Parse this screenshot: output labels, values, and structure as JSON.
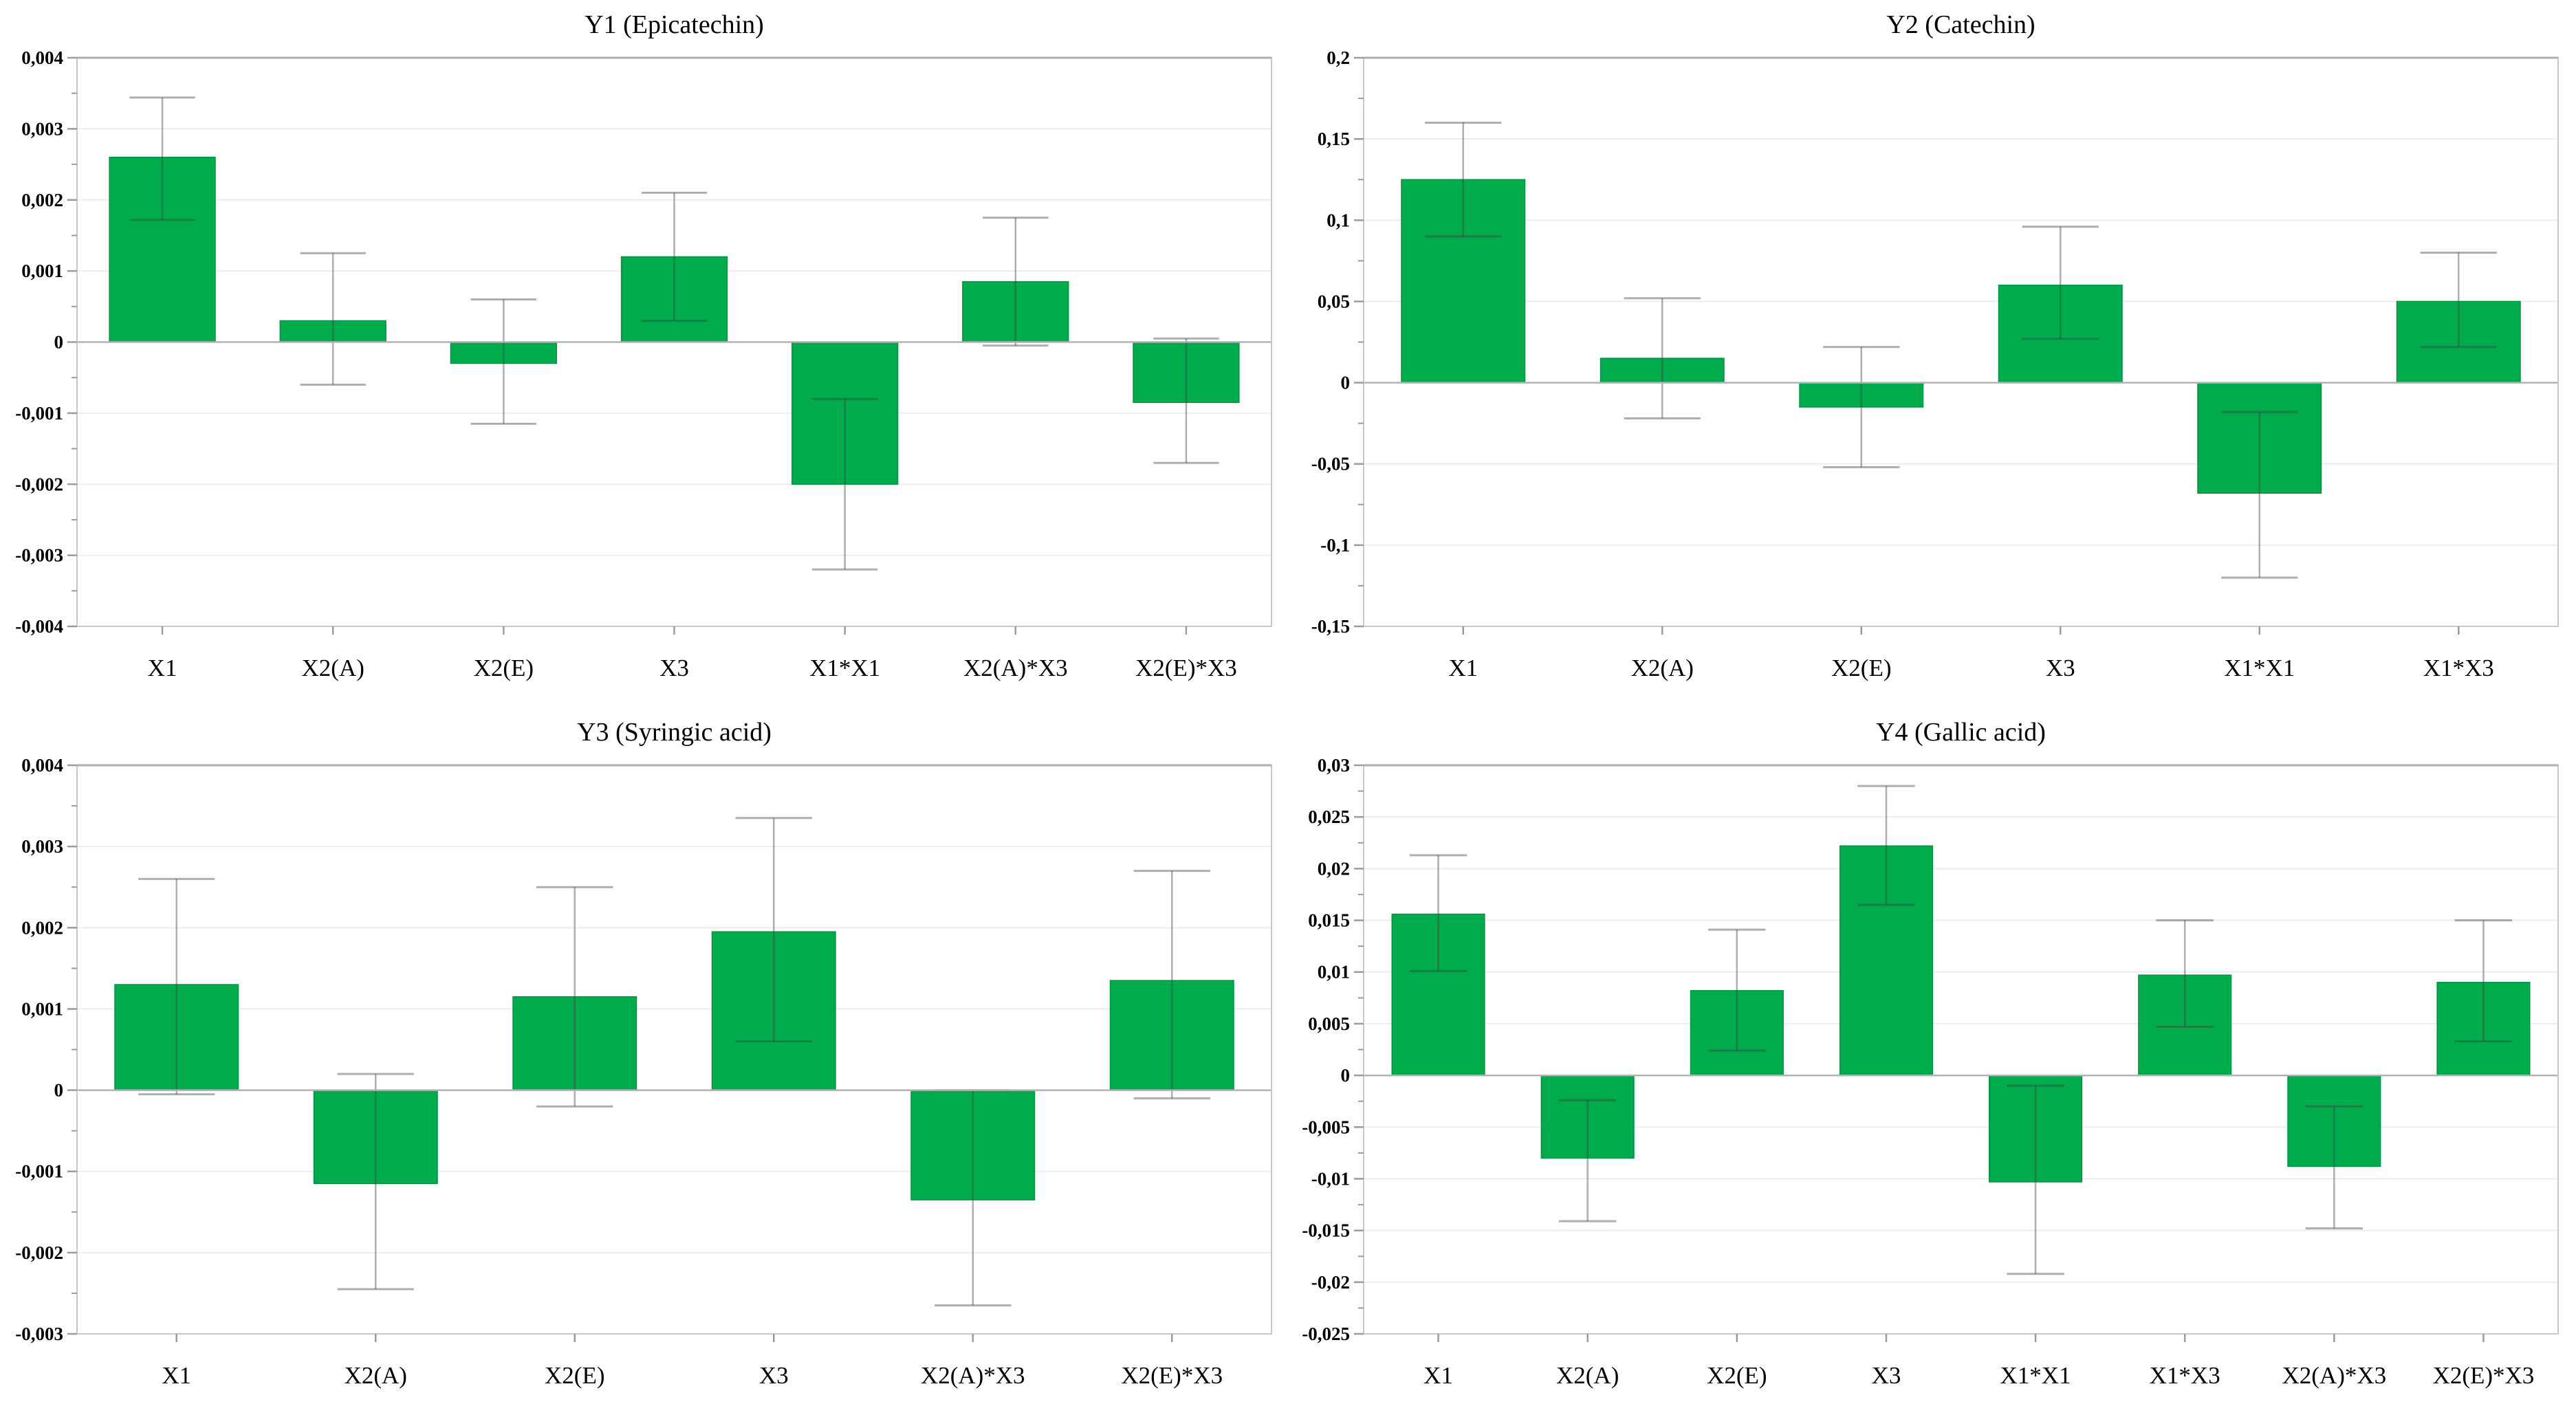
{
  "page": {
    "kind": "figure",
    "description_colors": {
      "bar": "#00ab4b",
      "bar_border": "#019345",
      "error": "rgba(64,64,64,0.42)",
      "grid": "#ededed",
      "zero_line": "#b2b2b2",
      "plot_border": "#c9c9c9",
      "tick": "#9b9b9b",
      "text": "#000000"
    }
  },
  "chart_data": [
    {
      "type": "bar",
      "title": "Y1 (Epicatechin)",
      "xlabel": "",
      "ylabel": "",
      "ylim": [
        -0.004,
        0.004
      ],
      "ytick_step": 0.001,
      "ytick_labels": [
        "0,004",
        "0,003",
        "0,002",
        "0,001",
        "0",
        "-0,001",
        "-0,002",
        "-0,003",
        "-0,004"
      ],
      "grid": "horizontal",
      "legend": "none",
      "categories": [
        "X1",
        "X2(A)",
        "X2(E)",
        "X3",
        "X1*X1",
        "X2(A)*X3",
        "X2(E)*X3"
      ],
      "values": [
        0.0026,
        0.0003,
        -0.0003,
        0.0012,
        -0.002,
        0.00085,
        -0.00085
      ],
      "error_low": [
        0.00172,
        -0.0006,
        -0.00115,
        0.0003,
        -0.0032,
        -5e-05,
        -0.0017
      ],
      "error_high": [
        0.00344,
        0.00125,
        0.0006,
        0.0021,
        -0.0008,
        0.00175,
        5e-05
      ]
    },
    {
      "type": "bar",
      "title": "Y2 (Catechin)",
      "xlabel": "",
      "ylabel": "",
      "ylim": [
        -0.15,
        0.2
      ],
      "ytick_step": 0.05,
      "ytick_labels": [
        "0,2",
        "0,15",
        "0,1",
        "0,05",
        "0",
        "-0,05",
        "-0,1",
        "-0,15"
      ],
      "grid": "horizontal",
      "legend": "none",
      "categories": [
        "X1",
        "X2(A)",
        "X2(E)",
        "X3",
        "X1*X1",
        "X1*X3"
      ],
      "values": [
        0.125,
        0.015,
        -0.015,
        0.06,
        -0.068,
        0.05
      ],
      "error_low": [
        0.09,
        -0.022,
        -0.052,
        0.027,
        -0.12,
        0.022
      ],
      "error_high": [
        0.16,
        0.052,
        0.022,
        0.096,
        -0.018,
        0.08
      ]
    },
    {
      "type": "bar",
      "title": "Y3 (Syringic acid)",
      "xlabel": "",
      "ylabel": "",
      "ylim": [
        -0.003,
        0.004
      ],
      "ytick_step": 0.001,
      "ytick_labels": [
        "0,004",
        "0,003",
        "0,002",
        "0,001",
        "0",
        "-0,001",
        "-0,002",
        "-0,003"
      ],
      "grid": "horizontal",
      "legend": "none",
      "categories": [
        "X1",
        "X2(A)",
        "X2(E)",
        "X3",
        "X2(A)*X3",
        "X2(E)*X3"
      ],
      "values": [
        0.0013,
        -0.00115,
        0.00115,
        0.00195,
        -0.00135,
        0.00135
      ],
      "error_low": [
        -5e-05,
        -0.00245,
        -0.0002,
        0.0006,
        -0.00265,
        -0.0001
      ],
      "error_high": [
        0.0026,
        0.0002,
        0.0025,
        0.00335,
        0.0,
        0.0027
      ]
    },
    {
      "type": "bar",
      "title": "Y4 (Gallic acid)",
      "xlabel": "",
      "ylabel": "",
      "ylim": [
        -0.025,
        0.03
      ],
      "ytick_step": 0.005,
      "ytick_labels": [
        "0,03",
        "0,025",
        "0,02",
        "0,015",
        "0,01",
        "0,005",
        "0",
        "-0,005",
        "-0,01",
        "-0,015",
        "-0,02",
        "-0,025"
      ],
      "grid": "horizontal",
      "legend": "none",
      "categories": [
        "X1",
        "X2(A)",
        "X2(E)",
        "X3",
        "X1*X1",
        "X1*X3",
        "X2(A)*X3",
        "X2(E)*X3"
      ],
      "values": [
        0.0156,
        -0.008,
        0.0082,
        0.0222,
        -0.0103,
        0.0097,
        -0.0088,
        0.009
      ],
      "error_low": [
        0.0101,
        -0.0141,
        0.0024,
        0.0165,
        -0.0192,
        0.0047,
        -0.0148,
        0.0033
      ],
      "error_high": [
        0.0213,
        -0.0024,
        0.0141,
        0.028,
        -0.001,
        0.015,
        -0.003,
        0.015
      ]
    }
  ],
  "colors": {
    "bar": "#00ab4b",
    "bar_border": "#019345",
    "error": "rgba(64,64,64,0.42)",
    "grid": "#ededed",
    "zero_line": "#b2b2b2",
    "plot_border": "#c9c9c9",
    "tick": "#9b9b9b",
    "text": "#000000"
  }
}
